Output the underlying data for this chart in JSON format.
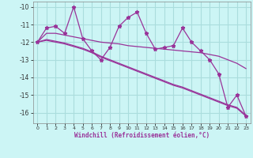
{
  "x": [
    0,
    1,
    2,
    3,
    4,
    5,
    6,
    7,
    8,
    9,
    10,
    11,
    12,
    13,
    14,
    15,
    16,
    17,
    18,
    19,
    20,
    21,
    22,
    23
  ],
  "y_main": [
    -12.0,
    -11.2,
    -11.1,
    -11.5,
    -10.0,
    -11.8,
    -12.5,
    -13.0,
    -12.3,
    -11.1,
    -10.6,
    -10.3,
    -11.5,
    -12.4,
    -12.3,
    -12.2,
    -11.2,
    -12.0,
    -12.5,
    -13.0,
    -13.8,
    -15.7,
    -15.0,
    -16.2
  ],
  "y_line1": [
    -12.0,
    -11.5,
    -11.5,
    -11.6,
    -11.7,
    -11.8,
    -11.9,
    -12.0,
    -12.05,
    -12.1,
    -12.2,
    -12.25,
    -12.3,
    -12.35,
    -12.4,
    -12.45,
    -12.5,
    -12.55,
    -12.6,
    -12.7,
    -12.8,
    -13.0,
    -13.2,
    -13.5
  ],
  "y_line2": [
    -12.0,
    -11.9,
    -12.0,
    -12.1,
    -12.25,
    -12.4,
    -12.6,
    -12.85,
    -13.05,
    -13.25,
    -13.45,
    -13.65,
    -13.85,
    -14.05,
    -14.25,
    -14.45,
    -14.6,
    -14.8,
    -15.0,
    -15.2,
    -15.4,
    -15.6,
    -15.75,
    -16.2
  ],
  "y_line3": [
    -12.0,
    -11.85,
    -11.95,
    -12.05,
    -12.2,
    -12.35,
    -12.55,
    -12.8,
    -13.0,
    -13.2,
    -13.4,
    -13.6,
    -13.8,
    -14.0,
    -14.2,
    -14.4,
    -14.55,
    -14.75,
    -14.95,
    -15.15,
    -15.35,
    -15.55,
    -15.7,
    -16.15
  ],
  "line_color": "#993399",
  "bg_color": "#ccf5f5",
  "grid_color": "#aadddd",
  "xlabel": "Windchill (Refroidissement éolien,°C)",
  "xlim": [
    -0.5,
    23.5
  ],
  "ylim": [
    -16.6,
    -9.7
  ],
  "yticks": [
    -10,
    -11,
    -12,
    -13,
    -14,
    -15,
    -16
  ],
  "xtick_labels": [
    "0",
    "1",
    "2",
    "3",
    "4",
    "5",
    "6",
    "7",
    "8",
    "9",
    "10",
    "11",
    "12",
    "13",
    "14",
    "15",
    "16",
    "17",
    "18",
    "19",
    "20",
    "21",
    "22",
    "23"
  ]
}
